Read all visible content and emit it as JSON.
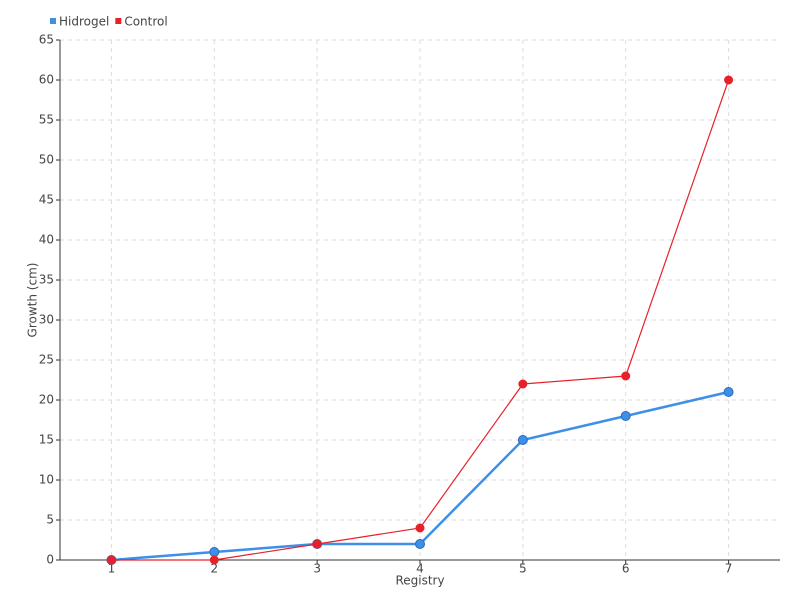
{
  "chart_data": {
    "type": "line",
    "x_label": "Registry",
    "y_label": "Growth (cm)",
    "categories": [
      "1",
      "2",
      "3",
      "4",
      "5",
      "6",
      "7"
    ],
    "series": [
      {
        "name": "Hidrogel",
        "color": "#3d8fe8",
        "values": [
          0,
          1,
          2,
          2,
          15,
          18,
          21
        ]
      },
      {
        "name": "Control",
        "color": "#e8202a",
        "values": [
          0,
          0,
          2,
          4,
          22,
          23,
          60
        ]
      }
    ],
    "ylim": [
      0,
      65
    ],
    "yticks": [
      0,
      5,
      10,
      15,
      20,
      25,
      30,
      35,
      40,
      45,
      50,
      55,
      60,
      65
    ],
    "grid": true,
    "legend": "top-left"
  }
}
